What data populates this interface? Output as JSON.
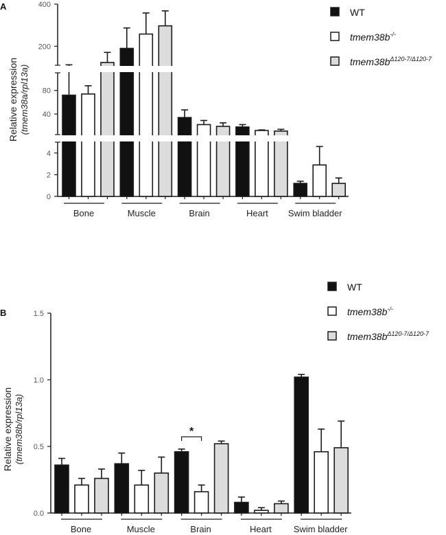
{
  "colors": {
    "wt": "#111111",
    "ko": "#ffffff",
    "del": "#dcdcdc",
    "stroke": "#1a1a1a"
  },
  "chart_data": [
    {
      "panel": "A",
      "type": "bar",
      "ylabel_main": "Relative expression",
      "ylabel_sub": "(tmem38a/rpl13a)",
      "categories": [
        "Bone",
        "Muscle",
        "Brain",
        "Heart",
        "Swim bladder"
      ],
      "y_axis_breaks": [
        {
          "range": [
            0,
            5
          ],
          "ticks": [
            "0",
            "2",
            "4"
          ]
        },
        {
          "range": [
            5,
            110
          ],
          "ticks": [
            "40",
            "80"
          ]
        },
        {
          "range": [
            110,
            400
          ],
          "ticks": [
            "200",
            "400"
          ]
        }
      ],
      "legend": [
        {
          "name": "WT",
          "sup": "",
          "italic": false
        },
        {
          "name": "tmem38b",
          "sup": "-/-",
          "italic": true
        },
        {
          "name": "tmem38b",
          "sup": "Δ120-7/Δ120-7",
          "italic": true
        }
      ],
      "legend_position": "top-right",
      "series": [
        {
          "name": "WT",
          "values": [
            72,
            190,
            34,
            18,
            1.2
          ],
          "errors": [
            112,
            287,
            47,
            22,
            1.4
          ]
        },
        {
          "name": "tmem38b-/-",
          "values": [
            74,
            258,
            22,
            12,
            2.9
          ],
          "errors": [
            88,
            358,
            29,
            13,
            4.6
          ]
        },
        {
          "name": "tmem38bΔ120-7/Δ120-7",
          "values": [
            123,
            297,
            19,
            11,
            1.2
          ],
          "errors": [
            171,
            368,
            25,
            14,
            1.7
          ]
        }
      ]
    },
    {
      "panel": "B",
      "type": "bar",
      "ylabel_main": "Relative expression",
      "ylabel_sub": "(tmem38b/rpl13a)",
      "categories": [
        "Bone",
        "Muscle",
        "Brain",
        "Heart",
        "Swim bladder"
      ],
      "ylim": [
        0,
        1.5
      ],
      "yticks": [
        "0.0",
        "0.5",
        "1.0",
        "1.5"
      ],
      "legend": [
        {
          "name": "WT",
          "sup": "",
          "italic": false
        },
        {
          "name": "tmem38b",
          "sup": "-/-",
          "italic": true
        },
        {
          "name": "tmem38b",
          "sup": "Δ120-7/Δ120-7",
          "italic": true
        }
      ],
      "legend_position": "top-right",
      "annotation": {
        "text": "*",
        "category": "Brain",
        "between": [
          "WT",
          "tmem38b-/-"
        ]
      },
      "series": [
        {
          "name": "WT",
          "values": [
            0.36,
            0.37,
            0.46,
            0.08,
            1.02
          ],
          "errors": [
            0.41,
            0.45,
            0.48,
            0.12,
            1.04
          ]
        },
        {
          "name": "tmem38b-/-",
          "values": [
            0.21,
            0.21,
            0.16,
            0.02,
            0.46
          ],
          "errors": [
            0.26,
            0.32,
            0.21,
            0.04,
            0.63
          ]
        },
        {
          "name": "tmem38bΔ120-7/Δ120-7",
          "values": [
            0.26,
            0.3,
            0.52,
            0.07,
            0.49
          ],
          "errors": [
            0.33,
            0.42,
            0.54,
            0.09,
            0.69
          ]
        }
      ]
    }
  ]
}
